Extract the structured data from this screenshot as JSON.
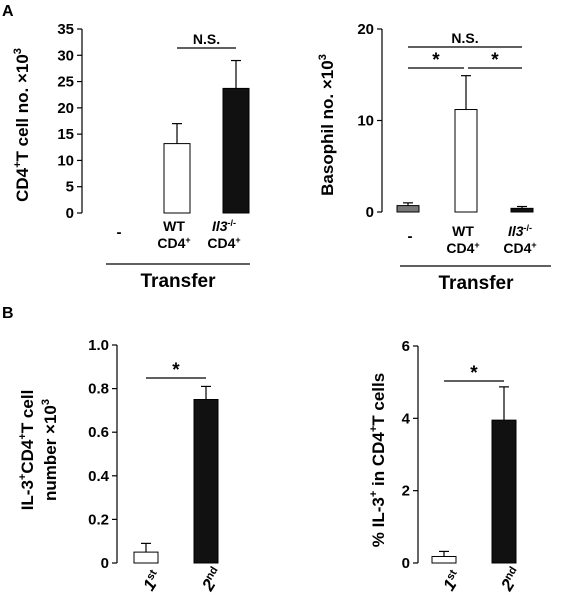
{
  "figure": {
    "panel_labels": [
      "A",
      "B"
    ]
  },
  "chart_data": [
    {
      "panel": "A",
      "type": "bar",
      "ylabel": "CD4⁺T cell no. ×10³",
      "ylim": [
        0,
        35
      ],
      "yticks": [
        "0",
        "5",
        "10",
        "15",
        "20",
        "25",
        "30",
        "35"
      ],
      "categories": [
        "-",
        "WT CD4⁺",
        "Il3⁻/⁻ CD4⁺"
      ],
      "values": [
        0,
        13.2,
        23.7
      ],
      "errors": [
        0,
        3.8,
        5.3
      ],
      "bar_colors": [
        "#ffffff",
        "#ffffff",
        "#111111"
      ],
      "group_label": "Transfer",
      "annotations": [
        {
          "between": [
            1,
            2
          ],
          "text": "N.S."
        }
      ]
    },
    {
      "panel": "A",
      "type": "bar",
      "ylabel": "Basophil no. ×10³",
      "ylim": [
        0,
        20
      ],
      "yticks": [
        "0",
        "10",
        "20"
      ],
      "categories": [
        "-",
        "WT CD4⁺",
        "Il3⁻/⁻ CD4⁺"
      ],
      "values": [
        0.7,
        11.2,
        0.4
      ],
      "errors": [
        0.3,
        3.7,
        0.2
      ],
      "bar_colors": [
        "#777777",
        "#ffffff",
        "#111111"
      ],
      "group_label": "Transfer",
      "annotations": [
        {
          "between": [
            0,
            2
          ],
          "text": "N.S."
        },
        {
          "between": [
            0,
            1
          ],
          "text": "*"
        },
        {
          "between": [
            1,
            2
          ],
          "text": "*"
        }
      ]
    },
    {
      "panel": "B",
      "type": "bar",
      "ylabel": "IL-3⁺CD4⁺T cell number ×10³",
      "ylim": [
        0,
        1.0
      ],
      "yticks": [
        "0",
        "0.2",
        "0.4",
        "0.6",
        "0.8",
        "1.0"
      ],
      "categories": [
        "1st",
        "2nd"
      ],
      "values": [
        0.05,
        0.75
      ],
      "errors": [
        0.04,
        0.06
      ],
      "bar_colors": [
        "#ffffff",
        "#111111"
      ],
      "annotations": [
        {
          "between": [
            0,
            1
          ],
          "text": "*"
        }
      ]
    },
    {
      "panel": "B",
      "type": "bar",
      "ylabel": "% IL-3⁺ in CD4⁺T cells",
      "ylim": [
        0,
        6
      ],
      "yticks": [
        "0",
        "2",
        "4",
        "6"
      ],
      "categories": [
        "1st",
        "2nd"
      ],
      "values": [
        0.18,
        3.95
      ],
      "errors": [
        0.14,
        0.92
      ],
      "bar_colors": [
        "#ffffff",
        "#111111"
      ],
      "annotations": [
        {
          "between": [
            0,
            1
          ],
          "text": "*"
        }
      ]
    }
  ]
}
